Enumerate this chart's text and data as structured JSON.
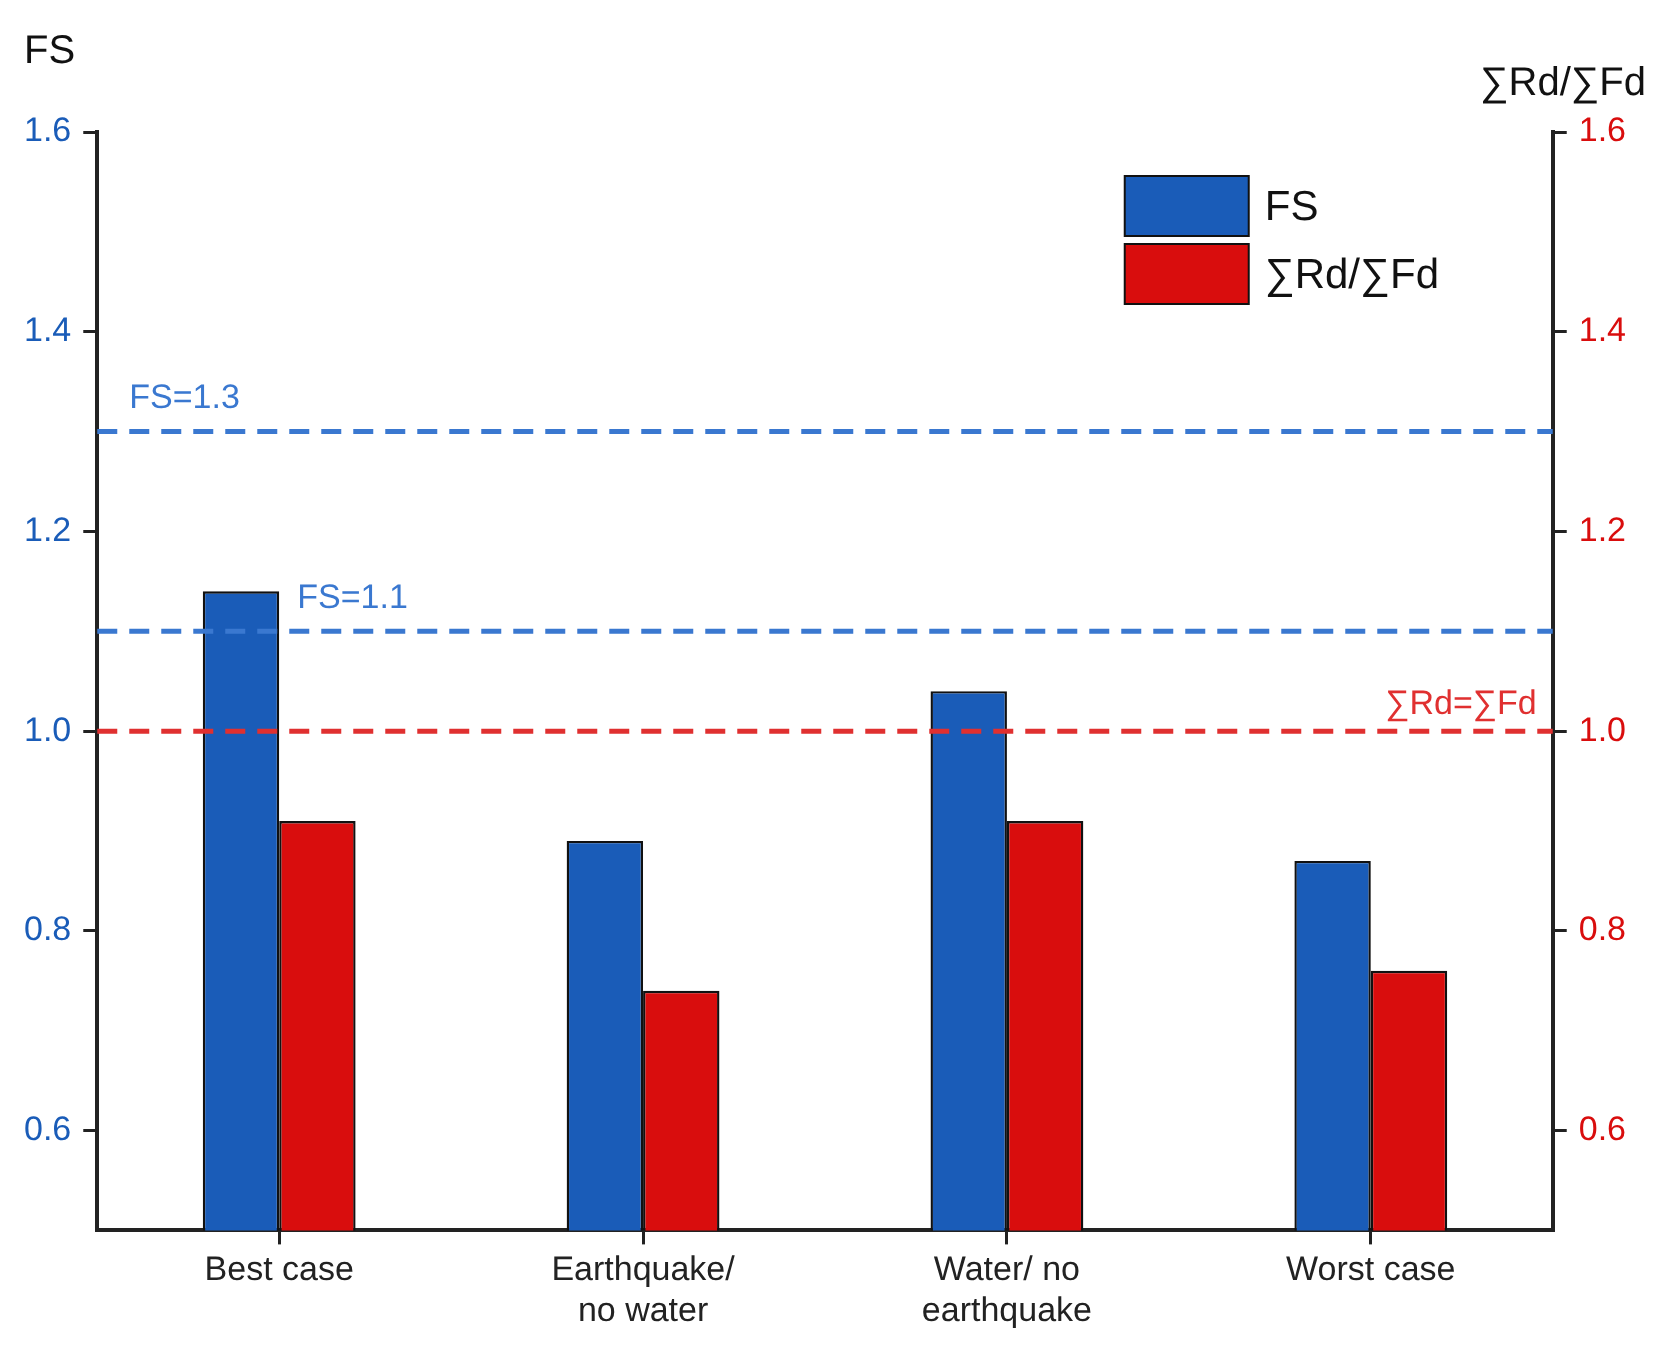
{
  "chart_data": {
    "type": "bar",
    "ylabel": "FS",
    "y2label": "∑Rd/∑Fd",
    "categories": [
      "Best case",
      "Earthquake/ no water",
      "Water/ no earthquake",
      "Worst case"
    ],
    "series": [
      {
        "name": "FS",
        "color": "#1a5cb8",
        "values": [
          1.14,
          0.89,
          1.04,
          0.87
        ]
      },
      {
        "name": "∑Rd/∑Fd",
        "color": "#d90d0d",
        "values": [
          0.91,
          0.74,
          0.91,
          0.76
        ],
        "axis": "y2"
      }
    ],
    "ylim": [
      0.5,
      1.6
    ],
    "yticks": [
      0.6,
      0.8,
      {
        "value": 1.0,
        "label": "1.0"
      },
      1.2,
      1.4,
      1.6
    ],
    "y2lim": [
      0.5,
      1.6
    ],
    "y2ticks": [
      0.6,
      0.8,
      {
        "value": 1.0,
        "label": "1.0"
      },
      1.2,
      1.4,
      1.6
    ],
    "ref_lines": [
      {
        "axis": "y",
        "value": 1.3,
        "label": "FS=1.3",
        "color": "#3a78d0",
        "line_style": "dashed"
      },
      {
        "axis": "y",
        "value": 1.1,
        "label": "FS=1.1",
        "color": "#3a78d0",
        "line_style": "dashed"
      },
      {
        "axis": "y2",
        "value": 1.0,
        "label": "∑Rd=∑Fd",
        "color": "#e03030",
        "line_style": "dashed"
      }
    ],
    "grid": false,
    "legend": "top right"
  }
}
